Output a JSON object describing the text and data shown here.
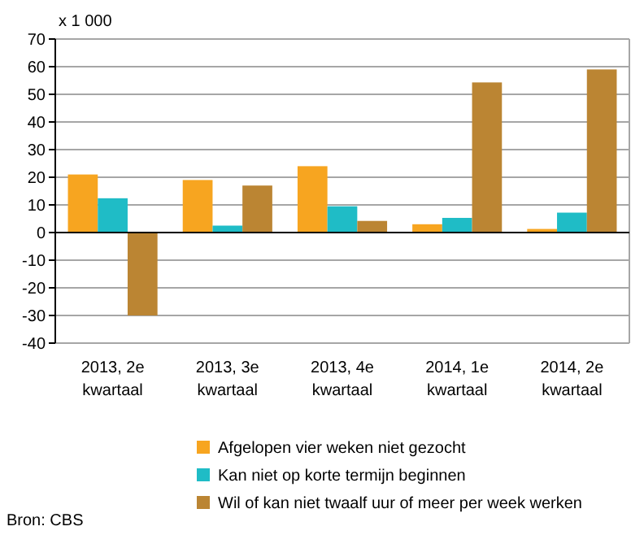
{
  "chart_data": {
    "type": "bar",
    "ylabel": "x 1 000",
    "categories": [
      "2013, 2e kwartaal",
      "2013, 3e kwartaal",
      "2013, 4e kwartaal",
      "2014, 1e kwartaal",
      "2014, 2e kwartaal"
    ],
    "series": [
      {
        "name": "Afgelopen vier weken niet gezocht",
        "color": "#f7a520",
        "values": [
          21,
          19,
          24,
          3,
          1.3
        ]
      },
      {
        "name": "Kan niet op korte termijn beginnen",
        "color": "#1fbcc6",
        "values": [
          12.4,
          2.5,
          9.5,
          5.3,
          7.2
        ]
      },
      {
        "name": "Wil of kan niet twaalf uur of meer per week werken",
        "color": "#bb8533",
        "values": [
          -30,
          17,
          4.2,
          54.3,
          59
        ]
      }
    ],
    "ylim": [
      -40,
      70
    ],
    "yticks": [
      -40,
      -30,
      -20,
      -10,
      0,
      10,
      20,
      30,
      40,
      50,
      60,
      70
    ],
    "grid": "y",
    "legend": "bottom",
    "annotations": [
      "Bron: CBS"
    ]
  }
}
